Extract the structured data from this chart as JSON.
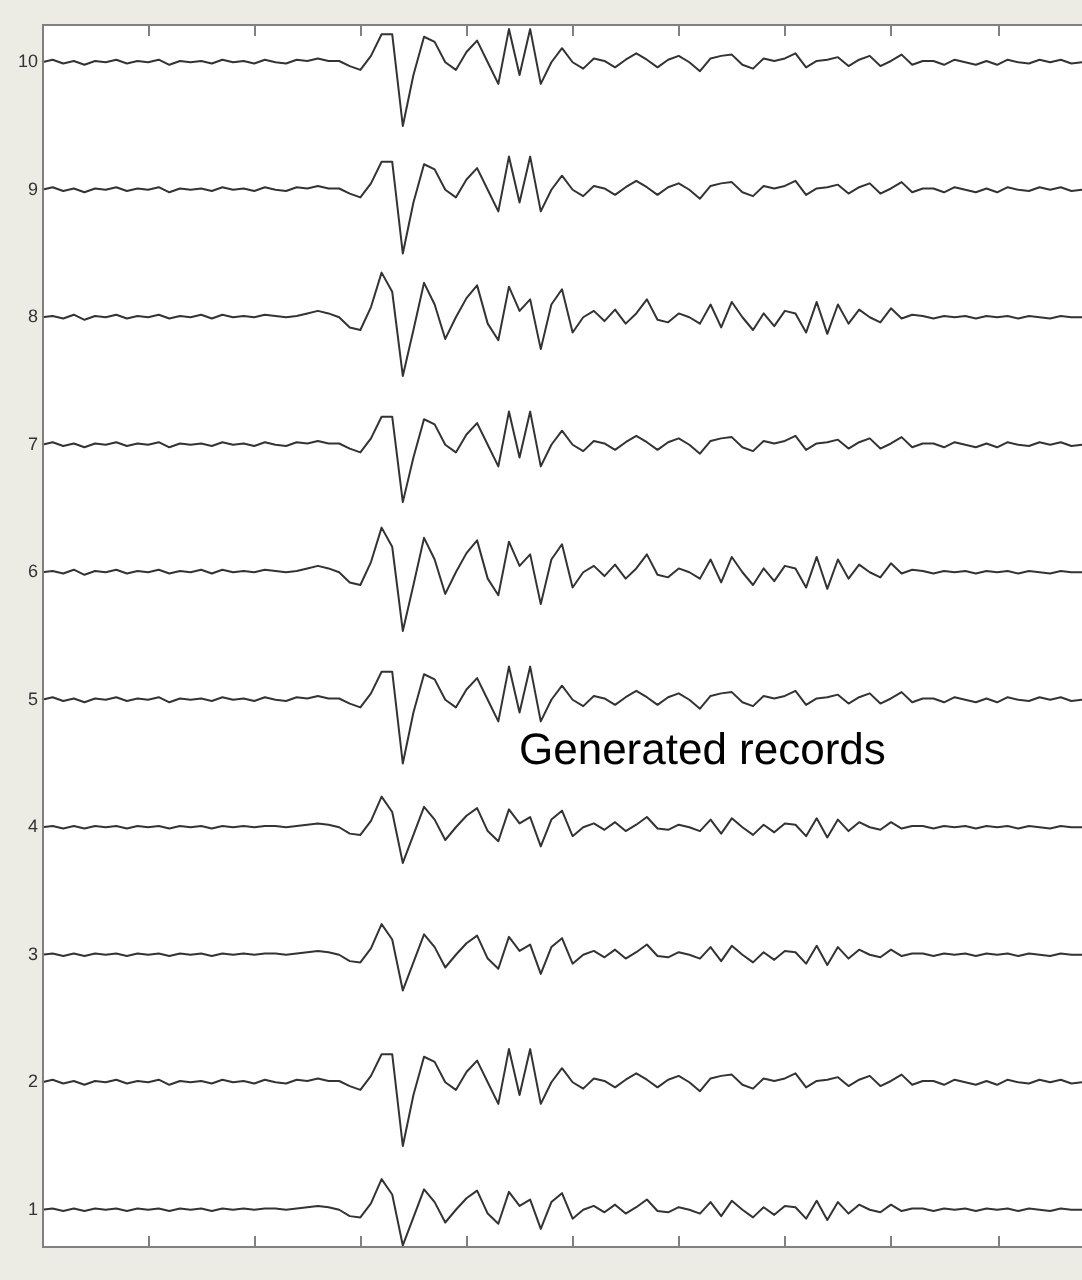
{
  "chart_data": {
    "type": "line",
    "annotations": [
      "Generated records"
    ],
    "categories": [
      null,
      null,
      null,
      null,
      null,
      null,
      null,
      null,
      null,
      null,
      null,
      null,
      null,
      null,
      null,
      null,
      null,
      null,
      null,
      null,
      null,
      null,
      null,
      null,
      null,
      null,
      null,
      null,
      null,
      null,
      null,
      null,
      null,
      null,
      null,
      null,
      null,
      null,
      null,
      null,
      null,
      null,
      null,
      null,
      null,
      null,
      null,
      null,
      null,
      null,
      null,
      null,
      null,
      null,
      null,
      null,
      null,
      null,
      null,
      null,
      null,
      null,
      null,
      null,
      null,
      null,
      null,
      null,
      null,
      null,
      null,
      null,
      null,
      null,
      null,
      null,
      null,
      null,
      null,
      null,
      null,
      null,
      null,
      null,
      null,
      null,
      null,
      null,
      null,
      null,
      null,
      null,
      null,
      null,
      null,
      null,
      null,
      null,
      null
    ],
    "ylim": [
      0.7,
      10.3
    ],
    "yticks": [
      1,
      2,
      3,
      4,
      5,
      6,
      7,
      8,
      9,
      10
    ],
    "tick_labels": "y",
    "grid": false,
    "legend": false,
    "marker": "none",
    "line_style": "solid",
    "series": [
      {
        "color": "#333333",
        "values": [
          10,
          10.02,
          9.99,
          10.01,
          9.98,
          10.01,
          10,
          10.02,
          9.99,
          10.01,
          10,
          10.02,
          9.98,
          10.01,
          10,
          10.01,
          9.99,
          10.02,
          10,
          10.01,
          9.99,
          10.02,
          10,
          9.99,
          10.02,
          10.01,
          10.03,
          10.01,
          10.01,
          9.97,
          9.94,
          10.05,
          10.22,
          10.22,
          9.5,
          9.9,
          10.2,
          10.16,
          10,
          9.94,
          10.08,
          10.17,
          10,
          9.83,
          10.26,
          9.9,
          10.26,
          9.83,
          10,
          10.11,
          10,
          9.95,
          10.03,
          10.01,
          9.96,
          10.02,
          10.07,
          10.02,
          9.96,
          10.02,
          10.05,
          10,
          9.93,
          10.03,
          10.05,
          10.06,
          9.98,
          9.95,
          10.03,
          10.01,
          10.03,
          10.07,
          9.96,
          10.01,
          10.02,
          10.04,
          9.97,
          10.02,
          10.05,
          9.97,
          10.01,
          10.06,
          9.98,
          10.01,
          10.01,
          9.98,
          10.02,
          10,
          9.98,
          10.01,
          9.98,
          10.02,
          10,
          9.99,
          10.02,
          10,
          10.02,
          9.99,
          10
        ]
      },
      {
        "color": "#333333",
        "values": [
          9,
          9.02,
          8.99,
          9.01,
          8.98,
          9.01,
          9,
          9.02,
          8.99,
          9.01,
          9,
          9.02,
          8.98,
          9.01,
          9,
          9.01,
          8.99,
          9.02,
          9,
          9.01,
          8.99,
          9.02,
          9,
          8.99,
          9.02,
          9.01,
          9.03,
          9.01,
          9.01,
          8.97,
          8.94,
          9.05,
          9.22,
          9.22,
          8.5,
          8.9,
          9.2,
          9.16,
          9,
          8.94,
          9.08,
          9.17,
          9,
          8.83,
          9.26,
          8.9,
          9.26,
          8.83,
          9,
          9.11,
          9,
          8.95,
          9.03,
          9.01,
          8.96,
          9.02,
          9.07,
          9.02,
          8.96,
          9.02,
          9.05,
          9,
          8.93,
          9.03,
          9.05,
          9.06,
          8.98,
          8.95,
          9.03,
          9.01,
          9.03,
          9.07,
          8.96,
          9.01,
          9.02,
          9.04,
          8.97,
          9.02,
          9.05,
          8.97,
          9.01,
          9.06,
          8.98,
          9.01,
          9.01,
          8.98,
          9.02,
          9,
          8.98,
          9.01,
          8.98,
          9.02,
          9,
          8.99,
          9.02,
          9,
          9.02,
          8.99,
          9
        ]
      },
      {
        "color": "#333333",
        "values": [
          8,
          8.01,
          7.99,
          8.02,
          7.98,
          8.01,
          8,
          8.02,
          7.99,
          8.01,
          8,
          8.02,
          7.99,
          8.01,
          8,
          8.02,
          7.99,
          8.02,
          8,
          8.01,
          8,
          8.02,
          8.01,
          8,
          8.01,
          8.03,
          8.05,
          8.03,
          8,
          7.92,
          7.9,
          8.08,
          8.35,
          8.2,
          7.54,
          7.9,
          8.27,
          8.1,
          7.83,
          8,
          8.15,
          8.25,
          7.95,
          7.82,
          8.24,
          8.05,
          8.14,
          7.75,
          8.1,
          8.22,
          7.88,
          8,
          8.05,
          7.97,
          8.06,
          7.95,
          8.03,
          8.14,
          7.98,
          7.96,
          8.03,
          8,
          7.95,
          8.1,
          7.92,
          8.12,
          8,
          7.9,
          8.03,
          7.93,
          8.05,
          8.03,
          7.88,
          8.12,
          7.87,
          8.1,
          7.95,
          8.06,
          8,
          7.96,
          8.07,
          7.99,
          8.02,
          8.01,
          7.99,
          8.01,
          8,
          8.01,
          7.99,
          8.01,
          8,
          8.01,
          7.99,
          8.01,
          8,
          7.99,
          8.01,
          8,
          8
        ]
      },
      {
        "color": "#333333",
        "values": [
          7,
          7.02,
          6.99,
          7.01,
          6.98,
          7.01,
          7,
          7.02,
          6.99,
          7.01,
          7,
          7.02,
          6.98,
          7.01,
          7,
          7.01,
          6.99,
          7.02,
          7,
          7.01,
          6.99,
          7.02,
          7,
          6.99,
          7.02,
          7.01,
          7.03,
          7.01,
          7.01,
          6.97,
          6.94,
          7.05,
          7.22,
          7.22,
          6.55,
          6.9,
          7.2,
          7.16,
          7,
          6.94,
          7.08,
          7.17,
          7,
          6.83,
          7.26,
          6.9,
          7.26,
          6.83,
          7,
          7.11,
          7,
          6.95,
          7.03,
          7.01,
          6.96,
          7.02,
          7.07,
          7.02,
          6.96,
          7.02,
          7.05,
          7,
          6.93,
          7.03,
          7.05,
          7.06,
          6.98,
          6.95,
          7.03,
          7.01,
          7.03,
          7.07,
          6.96,
          7.01,
          7.02,
          7.04,
          6.97,
          7.02,
          7.05,
          6.97,
          7.01,
          7.06,
          6.98,
          7.01,
          7.01,
          6.98,
          7.02,
          7,
          6.98,
          7.01,
          6.98,
          7.02,
          7,
          6.99,
          7.02,
          7,
          7.02,
          6.99,
          7
        ]
      },
      {
        "color": "#333333",
        "values": [
          6,
          6.01,
          5.99,
          6.02,
          5.98,
          6.01,
          6,
          6.02,
          5.99,
          6.01,
          6,
          6.02,
          5.99,
          6.01,
          6,
          6.02,
          5.99,
          6.02,
          6,
          6.01,
          6,
          6.02,
          6.01,
          6,
          6.01,
          6.03,
          6.05,
          6.03,
          6,
          5.92,
          5.9,
          6.08,
          6.35,
          6.2,
          5.54,
          5.9,
          6.27,
          6.1,
          5.83,
          6,
          6.15,
          6.25,
          5.95,
          5.82,
          6.24,
          6.05,
          6.14,
          5.75,
          6.1,
          6.22,
          5.88,
          6,
          6.05,
          5.97,
          6.06,
          5.95,
          6.03,
          6.14,
          5.98,
          5.96,
          6.03,
          6,
          5.95,
          6.1,
          5.92,
          6.12,
          6,
          5.9,
          6.03,
          5.93,
          6.05,
          6.03,
          5.88,
          6.12,
          5.87,
          6.1,
          5.95,
          6.06,
          6,
          5.96,
          6.07,
          5.99,
          6.02,
          6.01,
          5.99,
          6.01,
          6,
          6.01,
          5.99,
          6.01,
          6,
          6.01,
          5.99,
          6.01,
          6,
          5.99,
          6.01,
          6,
          6
        ]
      },
      {
        "color": "#333333",
        "values": [
          5,
          5.02,
          4.99,
          5.01,
          4.98,
          5.01,
          5,
          5.02,
          4.99,
          5.01,
          5,
          5.02,
          4.98,
          5.01,
          5,
          5.01,
          4.99,
          5.02,
          5,
          5.01,
          4.99,
          5.02,
          5,
          4.99,
          5.02,
          5.01,
          5.03,
          5.01,
          5.01,
          4.97,
          4.94,
          5.05,
          5.22,
          5.22,
          4.5,
          4.9,
          5.2,
          5.16,
          5,
          4.94,
          5.08,
          5.17,
          5,
          4.83,
          5.26,
          4.9,
          5.26,
          4.83,
          5,
          5.11,
          5,
          4.95,
          5.03,
          5.01,
          4.96,
          5.02,
          5.07,
          5.02,
          4.96,
          5.02,
          5.05,
          5,
          4.93,
          5.03,
          5.05,
          5.06,
          4.98,
          4.95,
          5.03,
          5.01,
          5.03,
          5.07,
          4.96,
          5.01,
          5.02,
          5.04,
          4.97,
          5.02,
          5.05,
          4.97,
          5.01,
          5.06,
          4.98,
          5.01,
          5.01,
          4.98,
          5.02,
          5,
          4.98,
          5.01,
          4.98,
          5.02,
          5,
          4.99,
          5.02,
          5,
          5.02,
          4.99,
          5
        ]
      },
      {
        "color": "#333333",
        "values": [
          4,
          4.01,
          3.99,
          4.01,
          3.99,
          4.01,
          4,
          4.01,
          3.99,
          4.01,
          4,
          4.01,
          3.99,
          4.01,
          4,
          4.01,
          3.99,
          4.01,
          4,
          4.01,
          4,
          4.01,
          4.01,
          4,
          4.01,
          4.02,
          4.03,
          4.02,
          4,
          3.95,
          3.94,
          4.05,
          4.24,
          4.12,
          3.72,
          3.94,
          4.16,
          4.06,
          3.9,
          4,
          4.09,
          4.15,
          3.97,
          3.89,
          4.14,
          4.03,
          4.08,
          3.85,
          4.06,
          4.13,
          3.93,
          4,
          4.03,
          3.98,
          4.04,
          3.97,
          4.02,
          4.08,
          3.99,
          3.98,
          4.02,
          4,
          3.97,
          4.06,
          3.95,
          4.07,
          4,
          3.94,
          4.02,
          3.96,
          4.03,
          4.02,
          3.93,
          4.07,
          3.92,
          4.06,
          3.97,
          4.04,
          4,
          3.98,
          4.04,
          3.99,
          4.01,
          4.01,
          3.99,
          4.01,
          4,
          4.01,
          3.99,
          4.01,
          4,
          4.01,
          3.99,
          4.01,
          4,
          3.99,
          4.01,
          4,
          4
        ]
      },
      {
        "color": "#333333",
        "values": [
          3,
          3.01,
          2.99,
          3.01,
          2.99,
          3.01,
          3,
          3.01,
          2.99,
          3.01,
          3,
          3.01,
          2.99,
          3.01,
          3,
          3.01,
          2.99,
          3.01,
          3,
          3.01,
          3,
          3.01,
          3.01,
          3,
          3.01,
          3.02,
          3.03,
          3.02,
          3,
          2.95,
          2.94,
          3.05,
          3.24,
          3.12,
          2.72,
          2.94,
          3.16,
          3.06,
          2.9,
          3,
          3.09,
          3.15,
          2.97,
          2.89,
          3.14,
          3.03,
          3.08,
          2.85,
          3.06,
          3.13,
          2.93,
          3,
          3.03,
          2.98,
          3.04,
          2.97,
          3.02,
          3.08,
          2.99,
          2.98,
          3.02,
          3,
          2.97,
          3.06,
          2.95,
          3.07,
          3,
          2.94,
          3.02,
          2.96,
          3.03,
          3.02,
          2.93,
          3.07,
          2.92,
          3.06,
          2.97,
          3.04,
          3,
          2.98,
          3.04,
          2.99,
          3.01,
          3.01,
          2.99,
          3.01,
          3,
          3.01,
          2.99,
          3.01,
          3,
          3.01,
          2.99,
          3.01,
          3,
          2.99,
          3.01,
          3,
          3
        ]
      },
      {
        "color": "#333333",
        "values": [
          2,
          2.02,
          1.99,
          2.01,
          1.98,
          2.01,
          2,
          2.02,
          1.99,
          2.01,
          2,
          2.02,
          1.98,
          2.01,
          2,
          2.01,
          1.99,
          2.02,
          2,
          2.01,
          1.99,
          2.02,
          2,
          1.99,
          2.02,
          2.01,
          2.03,
          2.01,
          2.01,
          1.97,
          1.94,
          2.05,
          2.22,
          2.22,
          1.5,
          1.9,
          2.2,
          2.16,
          2,
          1.94,
          2.08,
          2.17,
          2,
          1.83,
          2.26,
          1.9,
          2.26,
          1.83,
          2,
          2.11,
          2,
          1.95,
          2.03,
          2.01,
          1.96,
          2.02,
          2.07,
          2.02,
          1.96,
          2.02,
          2.05,
          2,
          1.93,
          2.03,
          2.05,
          2.06,
          1.98,
          1.95,
          2.03,
          2.01,
          2.03,
          2.07,
          1.96,
          2.01,
          2.02,
          2.04,
          1.97,
          2.02,
          2.05,
          1.97,
          2.01,
          2.06,
          1.98,
          2.01,
          2.01,
          1.98,
          2.02,
          2,
          1.98,
          2.01,
          1.98,
          2.02,
          2,
          1.99,
          2.02,
          2,
          2.02,
          1.99,
          2
        ]
      },
      {
        "color": "#333333",
        "values": [
          1,
          1.01,
          0.99,
          1.01,
          0.99,
          1.01,
          1,
          1.01,
          0.99,
          1.01,
          1,
          1.01,
          0.99,
          1.01,
          1,
          1.01,
          0.99,
          1.01,
          1,
          1.01,
          1,
          1.01,
          1.01,
          1,
          1.01,
          1.02,
          1.03,
          1.02,
          1,
          0.95,
          0.94,
          1.05,
          1.24,
          1.12,
          0.72,
          0.94,
          1.16,
          1.06,
          0.9,
          1,
          1.09,
          1.15,
          0.97,
          0.89,
          1.14,
          1.03,
          1.08,
          0.85,
          1.06,
          1.13,
          0.93,
          1,
          1.03,
          0.98,
          1.04,
          0.97,
          1.02,
          1.08,
          0.99,
          0.98,
          1.02,
          1,
          0.97,
          1.06,
          0.95,
          1.07,
          1,
          0.94,
          1.02,
          0.96,
          1.03,
          1.02,
          0.93,
          1.07,
          0.92,
          1.06,
          0.97,
          1.04,
          1,
          0.98,
          1.04,
          0.99,
          1.01,
          1.01,
          0.99,
          1.01,
          1,
          1.01,
          0.99,
          1.01,
          1,
          1.01,
          0.99,
          1.01,
          1,
          0.99,
          1.01,
          1,
          1
        ]
      }
    ]
  }
}
